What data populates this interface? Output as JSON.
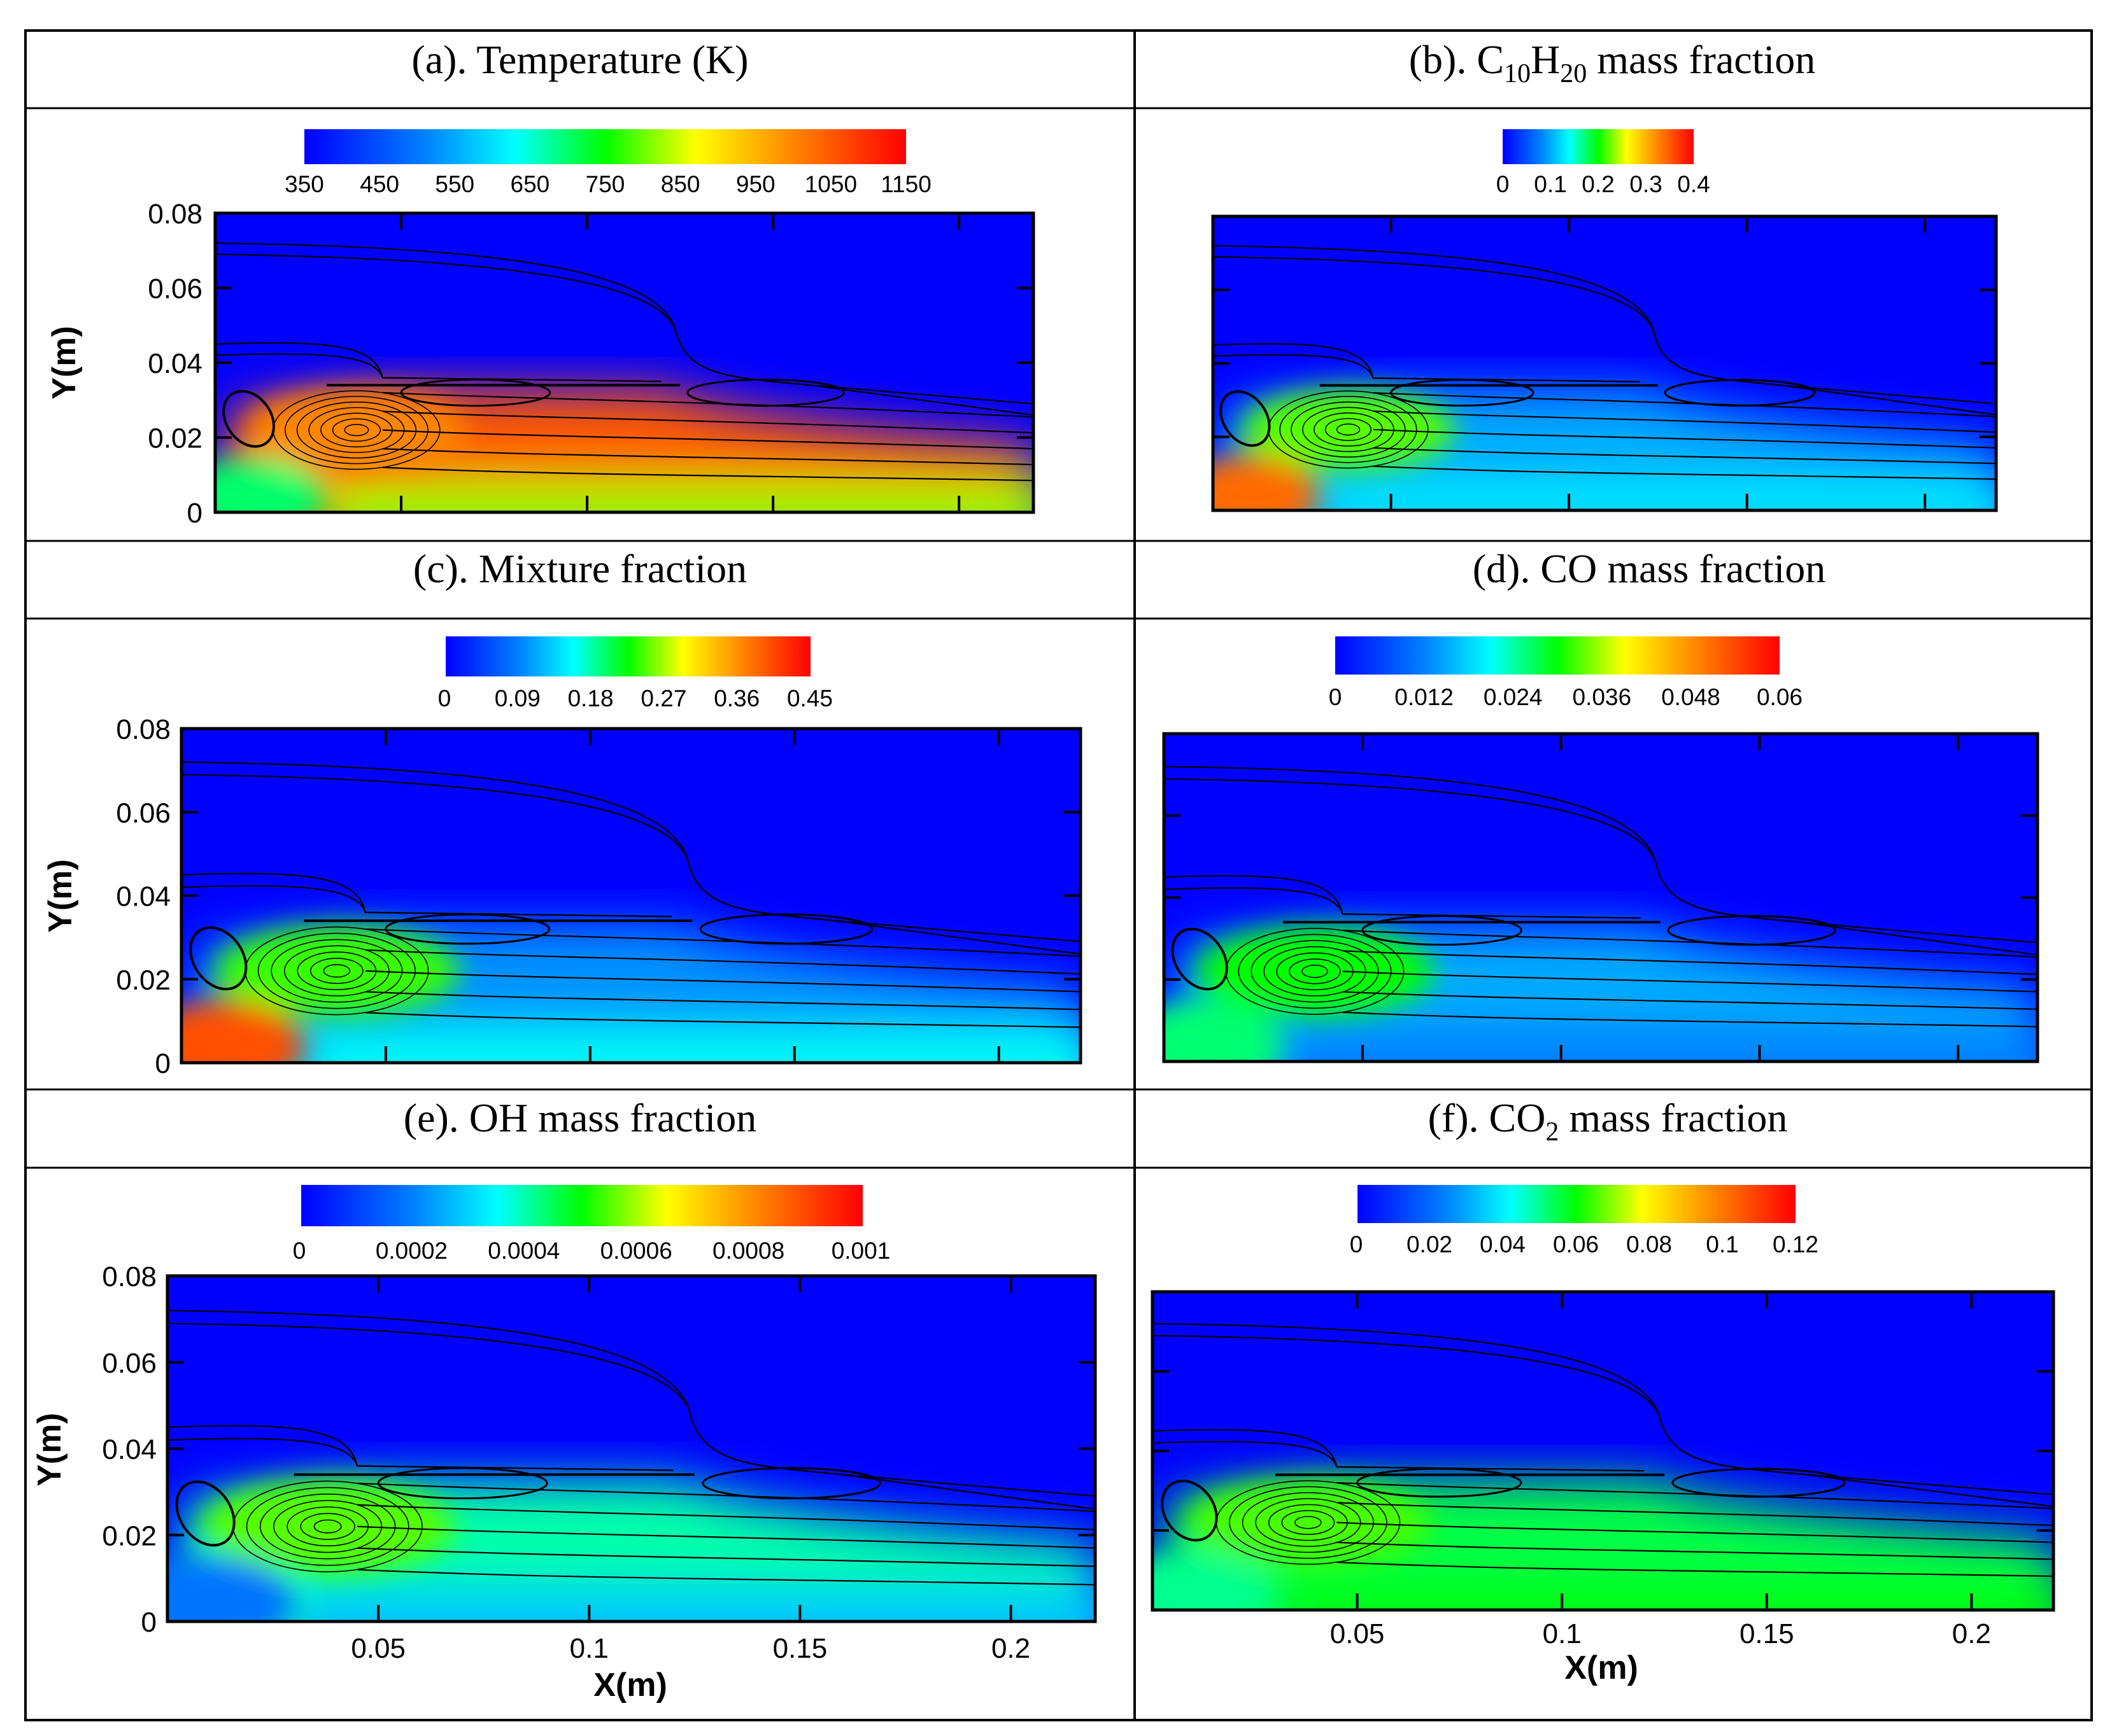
{
  "chart_data": [
    {
      "type": "heatmap",
      "title": "(a). Temperature (K)",
      "colorbar": {
        "min": 350,
        "max": 1150,
        "ticks": [
          "350",
          "450",
          "550",
          "650",
          "750",
          "850",
          "950",
          "1050",
          "1150"
        ]
      },
      "ylabel": "Y(m)",
      "xlabel": "",
      "xlim": [
        0,
        0.22
      ],
      "ylim": [
        0,
        0.08
      ],
      "yticks": [
        "0",
        "0.02",
        "0.04",
        "0.06",
        "0.08"
      ],
      "xticks": [],
      "field": {
        "ambient": 350,
        "vortex_core": 1000,
        "flame_zone": 1050,
        "near_wall": 820,
        "inlet_jet": 700
      }
    },
    {
      "type": "heatmap",
      "title_main": "(b). C",
      "title_sub1": "10",
      "title_mid": "H",
      "title_sub2": "20",
      "title_tail": " mass fraction",
      "colorbar": {
        "min": 0,
        "max": 0.4,
        "ticks": [
          "0",
          "0.1",
          "0.2",
          "0.3",
          "0.4"
        ]
      },
      "ylabel": "",
      "xlabel": "",
      "xlim": [
        0,
        0.22
      ],
      "ylim": [
        0,
        0.08
      ],
      "yticks": [],
      "xticks": [],
      "field": {
        "ambient": 0,
        "vortex_core": 0.22,
        "flame_zone": 0.1,
        "near_wall": 0.13,
        "inlet_jet": 0.34
      }
    },
    {
      "type": "heatmap",
      "title": "(c). Mixture fraction",
      "colorbar": {
        "min": 0,
        "max": 0.45,
        "ticks": [
          "0",
          "0.09",
          "0.18",
          "0.27",
          "0.36",
          "0.45"
        ]
      },
      "ylabel": "Y(m)",
      "xlabel": "",
      "xlim": [
        0,
        0.22
      ],
      "ylim": [
        0,
        0.08
      ],
      "yticks": [
        "0",
        "0.02",
        "0.04",
        "0.06",
        "0.08"
      ],
      "xticks": [],
      "field": {
        "ambient": 0,
        "vortex_core": 0.24,
        "flame_zone": 0.1,
        "near_wall": 0.16,
        "inlet_jet": 0.4
      }
    },
    {
      "type": "heatmap",
      "title": "(d). CO mass fraction",
      "colorbar": {
        "min": 0,
        "max": 0.06,
        "ticks": [
          "0",
          "0.012",
          "0.024",
          "0.036",
          "0.048",
          "0.06"
        ]
      },
      "ylabel": "",
      "xlabel": "",
      "xlim": [
        0,
        0.22
      ],
      "ylim": [
        0,
        0.08
      ],
      "yticks": [],
      "xticks": [],
      "field": {
        "ambient": 0,
        "vortex_core": 0.03,
        "flame_zone": 0.015,
        "near_wall": 0.012,
        "inlet_jet": 0.026
      }
    },
    {
      "type": "heatmap",
      "title": "(e). OH mass fraction",
      "colorbar": {
        "min": 0,
        "max": 0.001,
        "ticks": [
          "0",
          "0.0002",
          "0.0004",
          "0.0006",
          "0.0008",
          "0.001"
        ]
      },
      "ylabel": "Y(m)",
      "xlabel": "X(m)",
      "xlim": [
        0,
        0.22
      ],
      "ylim": [
        0,
        0.08
      ],
      "yticks": [
        "0",
        "0.02",
        "0.04",
        "0.06",
        "0.08"
      ],
      "xticks": [
        "0.05",
        "0.1",
        "0.15",
        "0.2"
      ],
      "field": {
        "ambient": 0,
        "vortex_core": 0.00055,
        "flame_zone": 0.0004,
        "near_wall": 0.00028,
        "inlet_jet": 0.00018
      }
    },
    {
      "type": "heatmap",
      "title_main": "(f). CO",
      "title_sub1": "2",
      "title_tail": " mass fraction",
      "colorbar": {
        "min": 0,
        "max": 0.12,
        "ticks": [
          "0",
          "0.02",
          "0.04",
          "0.06",
          "0.08",
          "0.1",
          "0.12"
        ]
      },
      "ylabel": "",
      "xlabel": "X(m)",
      "xlim": [
        0,
        0.22
      ],
      "ylim": [
        0,
        0.08
      ],
      "yticks": [],
      "xticks": [
        "0.05",
        "0.1",
        "0.15",
        "0.2"
      ],
      "field": {
        "ambient": 0,
        "vortex_core": 0.065,
        "flame_zone": 0.055,
        "near_wall": 0.06,
        "inlet_jet": 0.05
      }
    }
  ]
}
